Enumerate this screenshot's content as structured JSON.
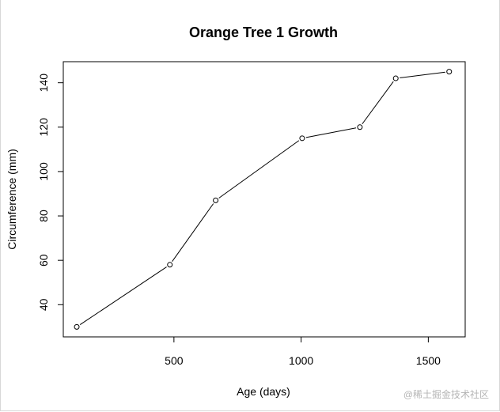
{
  "chart_data": {
    "type": "line",
    "title": "Orange Tree 1 Growth",
    "xlabel": "Age (days)",
    "ylabel": "Circumference (mm)",
    "x": [
      118,
      484,
      664,
      1004,
      1231,
      1372,
      1582
    ],
    "y": [
      30,
      58,
      87,
      115,
      120,
      142,
      145
    ],
    "xlim": [
      65,
      1645
    ],
    "ylim": [
      25.5,
      149.5
    ],
    "x_ticks": [
      500,
      1000,
      1500
    ],
    "y_ticks": [
      40,
      60,
      80,
      100,
      120,
      140
    ],
    "markers": "open-circle",
    "grid": false,
    "legend": "none"
  },
  "watermark": "@稀土掘金技术社区"
}
